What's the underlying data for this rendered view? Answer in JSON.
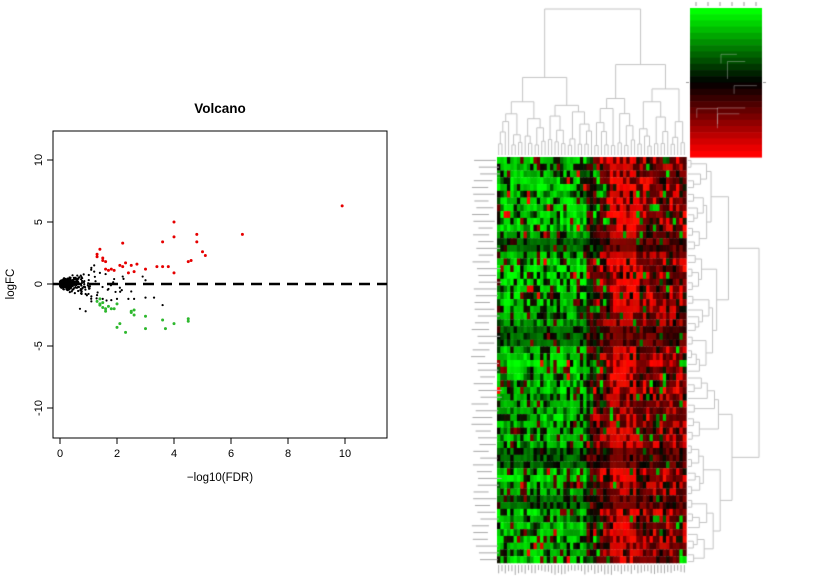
{
  "figure": {
    "background": "#ffffff",
    "panels": [
      "volcano-plot",
      "clustered-heatmap"
    ]
  },
  "chart_data": [
    {
      "type": "scatter",
      "name": "volcano-plot",
      "title": "Volcano",
      "xlabel": "−log10(FDR)",
      "ylabel": "logFC",
      "xlim": [
        -0.3,
        11.5
      ],
      "ylim": [
        -12.4,
        12.4
      ],
      "x_ticks": [
        0,
        2,
        4,
        6,
        8,
        10
      ],
      "y_ticks": [
        -10,
        -5,
        0,
        5,
        10
      ],
      "grid": false,
      "reference_line": {
        "y": 0,
        "style": "dashed",
        "color": "#000000",
        "width": 2.6
      },
      "series": [
        {
          "name": "up-regulated",
          "color": "#e60000",
          "points": [
            [
              9.9,
              6.3
            ],
            [
              6.4,
              4.0
            ],
            [
              4.0,
              5.0
            ],
            [
              4.8,
              4.0
            ],
            [
              4.0,
              3.8
            ],
            [
              3.6,
              3.4
            ],
            [
              2.2,
              3.3
            ],
            [
              4.8,
              3.4
            ],
            [
              5.0,
              2.6
            ],
            [
              5.1,
              2.3
            ],
            [
              1.4,
              2.8
            ],
            [
              1.3,
              2.4
            ],
            [
              1.3,
              2.2
            ],
            [
              4.6,
              1.9
            ],
            [
              4.5,
              1.8
            ],
            [
              2.3,
              1.7
            ],
            [
              2.7,
              1.6
            ],
            [
              3.6,
              1.4
            ],
            [
              3.8,
              1.4
            ],
            [
              3.0,
              1.2
            ],
            [
              1.6,
              1.2
            ],
            [
              1.7,
              1.1
            ],
            [
              1.8,
              1.2
            ],
            [
              1.9,
              1.1
            ],
            [
              2.4,
              0.9
            ],
            [
              2.6,
              1.0
            ],
            [
              4.0,
              0.9
            ],
            [
              1.5,
              1.9
            ],
            [
              1.6,
              1.8
            ],
            [
              2.1,
              1.5
            ],
            [
              2.2,
              1.4
            ],
            [
              2.5,
              1.5
            ],
            [
              3.4,
              1.4
            ],
            [
              1.5,
              2.1
            ]
          ]
        },
        {
          "name": "down-regulated",
          "color": "#2eb82e",
          "points": [
            [
              1.4,
              -1.2
            ],
            [
              1.3,
              -1.4
            ],
            [
              1.4,
              -1.7
            ],
            [
              1.5,
              -1.9
            ],
            [
              1.6,
              -2.0
            ],
            [
              2.0,
              -1.6
            ],
            [
              1.4,
              -1.6
            ],
            [
              2.5,
              -2.2
            ],
            [
              2.6,
              -2.5
            ],
            [
              3.0,
              -2.6
            ],
            [
              3.6,
              -2.9
            ],
            [
              4.0,
              -3.2
            ],
            [
              4.5,
              -3.0
            ],
            [
              4.5,
              -2.8
            ],
            [
              2.0,
              -3.5
            ],
            [
              2.3,
              -3.9
            ],
            [
              3.0,
              -3.6
            ],
            [
              3.7,
              -3.6
            ],
            [
              1.9,
              -2.0
            ],
            [
              1.7,
              -1.8
            ],
            [
              1.8,
              -2.0
            ],
            [
              1.6,
              -2.2
            ],
            [
              2.5,
              -2.3
            ],
            [
              2.6,
              -2.1
            ],
            [
              1.5,
              -1.5
            ],
            [
              2.1,
              -3.2
            ]
          ]
        },
        {
          "name": "not-significant",
          "color": "#000000",
          "points": [
            [
              3.0,
              -1.1
            ],
            [
              3.3,
              -1.1
            ],
            [
              3.6,
              -1.7
            ],
            [
              2.5,
              -0.6
            ],
            [
              2.2,
              0.6
            ],
            [
              0.7,
              -2.0
            ],
            [
              0.9,
              -2.2
            ],
            [
              1.1,
              -1.4
            ],
            [
              1.1,
              -1.0
            ],
            [
              1.0,
              -0.8
            ],
            [
              2.9,
              0.6
            ],
            [
              2.0,
              -1.2
            ],
            [
              1.8,
              -1.3
            ],
            [
              2.6,
              -1.2
            ],
            [
              1.4,
              0.9
            ],
            [
              1.2,
              1.5
            ],
            [
              1.6,
              0.8
            ],
            [
              1.9,
              0.4
            ],
            [
              2.1,
              -0.3
            ],
            [
              1.3,
              -0.9
            ],
            [
              1.5,
              -1.2
            ],
            [
              3.0,
              0.3
            ],
            [
              2.4,
              -1.2
            ],
            [
              1.7,
              -0.4
            ],
            [
              1.2,
              1.0
            ],
            [
              1.1,
              1.3
            ]
          ],
          "cluster": {
            "count": 480,
            "seed": 7,
            "x_scale": 0.42,
            "x_max": 3.4,
            "y_base": 0.4,
            "y_slope": 1.1,
            "y_cap": 2.1
          }
        }
      ]
    },
    {
      "type": "heatmap",
      "name": "clustered-heatmap",
      "rows": 60,
      "cols": 57,
      "seed": 20,
      "palette": {
        "low": "#00ff00",
        "mid": "#000000",
        "high": "#ff0000"
      },
      "column_groups": [
        {
          "name": "green-block",
          "start_col": 0,
          "end_col": 26,
          "probs": {
            "bright_green": 0.62,
            "dark_green": 0.12,
            "black": 0.17,
            "dark_red": 0.06,
            "bright_red": 0.03
          }
        },
        {
          "name": "dark-transition",
          "start_col": 27,
          "end_col": 30,
          "probs": {
            "bright_green": 0.08,
            "dark_green": 0.2,
            "black": 0.35,
            "dark_red": 0.3,
            "bright_red": 0.07
          }
        },
        {
          "name": "dark-red-band",
          "start_col": 31,
          "end_col": 33,
          "probs": {
            "bright_green": 0.04,
            "dark_green": 0.06,
            "black": 0.2,
            "dark_red": 0.55,
            "bright_red": 0.15
          }
        },
        {
          "name": "bright-red-band",
          "start_col": 34,
          "end_col": 41,
          "probs": {
            "bright_green": 0.02,
            "dark_green": 0.01,
            "black": 0.03,
            "dark_red": 0.24,
            "bright_red": 0.7
          }
        },
        {
          "name": "red-mix-block",
          "start_col": 42,
          "end_col": 56,
          "probs": {
            "bright_green": 0.04,
            "dark_green": 0.02,
            "black": 0.12,
            "dark_red": 0.58,
            "bright_red": 0.24
          }
        }
      ],
      "dark_rows": [
        12,
        13,
        25,
        26,
        27,
        43,
        44,
        45,
        50,
        51
      ],
      "row_labels": {
        "count": 60,
        "legible": false
      },
      "col_labels": {
        "count": 57,
        "legible": false
      },
      "col_dendrogram": {
        "leaves": 57,
        "position": "top",
        "seed": 11,
        "line_color": "#c4c4c4"
      },
      "row_dendrogram": {
        "leaves": 60,
        "position": "right",
        "seed": 13,
        "line_color": "#c4c4c4"
      },
      "color_key": {
        "orientation": "vertical",
        "gradient_top": "#00ff00",
        "gradient_mid": "#000000",
        "gradient_bottom": "#ff0000",
        "bands": 24,
        "top_tick_count": 6,
        "legible_labels": false
      }
    }
  ]
}
